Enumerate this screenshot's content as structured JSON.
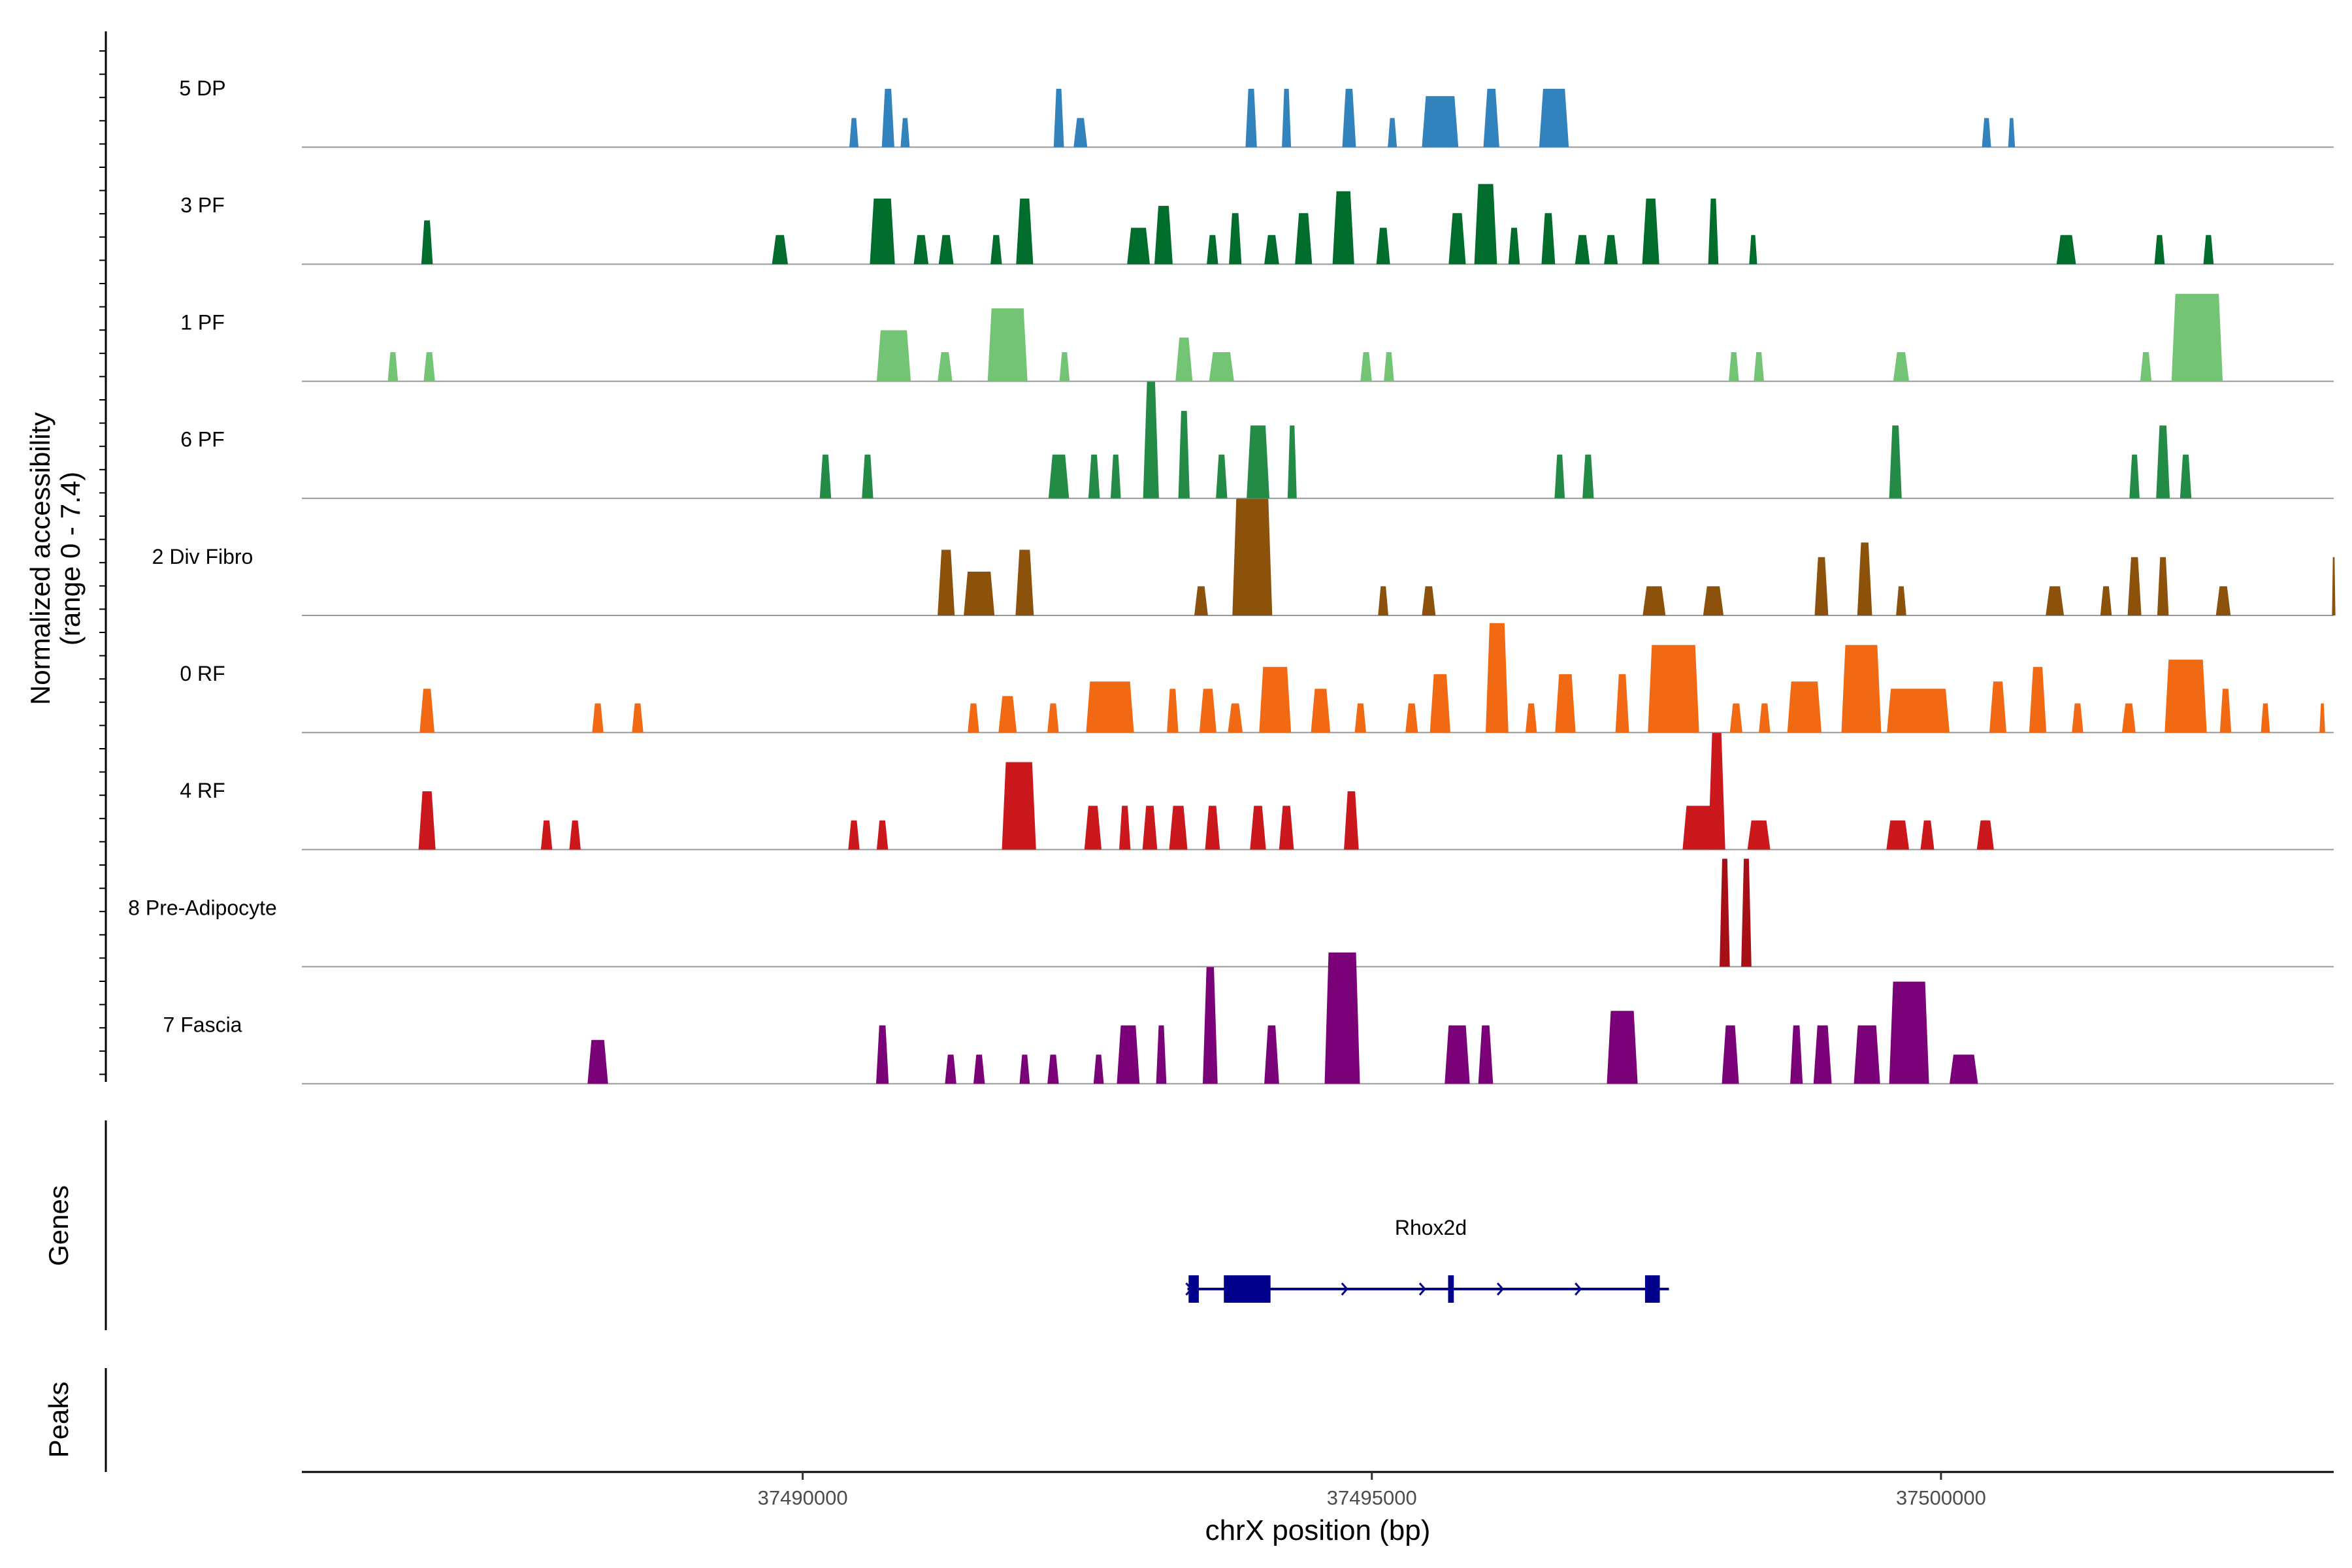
{
  "chart_data": {
    "type": "area",
    "title": "",
    "chromosome": "chrX",
    "xlabel": "chrX position (bp)",
    "ylabel": "Normalized accessibility",
    "ylabel_range": "(range 0 - 7.4)",
    "yrange": [
      0,
      7.4
    ],
    "xlim": [
      37485600,
      37503450
    ],
    "x_ticks": [
      37490000,
      37495000,
      37500000
    ],
    "x_tick_labels": [
      "37490000",
      "37495000",
      "37500000"
    ],
    "panels": {
      "genes_title": "Genes",
      "peaks_title": "Peaks"
    },
    "tracks": [
      {
        "name": "5 DP",
        "color": "#3182BD",
        "peaks": [
          [
            37490450,
            80,
            2.0
          ],
          [
            37490750,
            110,
            4.0
          ],
          [
            37490900,
            80,
            2.0
          ],
          [
            37492250,
            90,
            4.0
          ],
          [
            37492440,
            120,
            2.0
          ],
          [
            37493940,
            100,
            4.0
          ],
          [
            37494250,
            80,
            4.0
          ],
          [
            37494800,
            120,
            4.0
          ],
          [
            37495180,
            80,
            2.0
          ],
          [
            37495600,
            320,
            3.5
          ],
          [
            37496050,
            140,
            4.0
          ],
          [
            37496600,
            260,
            4.0
          ],
          [
            37500400,
            80,
            2.0
          ],
          [
            37500620,
            60,
            2.0
          ]
        ]
      },
      {
        "name": "3 PF",
        "color": "#006D2C",
        "peaks": [
          [
            37486700,
            100,
            3.0
          ],
          [
            37489800,
            140,
            2.0
          ],
          [
            37490700,
            220,
            4.5
          ],
          [
            37491040,
            130,
            2.0
          ],
          [
            37491260,
            130,
            2.0
          ],
          [
            37491700,
            100,
            2.0
          ],
          [
            37491950,
            150,
            4.5
          ],
          [
            37492950,
            200,
            2.5
          ],
          [
            37493170,
            160,
            4.0
          ],
          [
            37493600,
            100,
            2.0
          ],
          [
            37493800,
            110,
            3.5
          ],
          [
            37494120,
            130,
            2.0
          ],
          [
            37494400,
            150,
            3.5
          ],
          [
            37494750,
            190,
            5.0
          ],
          [
            37495100,
            120,
            2.5
          ],
          [
            37495750,
            150,
            3.5
          ],
          [
            37496000,
            200,
            5.5
          ],
          [
            37496250,
            100,
            2.5
          ],
          [
            37496550,
            120,
            3.5
          ],
          [
            37496850,
            130,
            2.0
          ],
          [
            37497100,
            120,
            2.0
          ],
          [
            37497450,
            150,
            4.5
          ],
          [
            37498000,
            90,
            4.5
          ],
          [
            37498350,
            70,
            2.0
          ],
          [
            37501100,
            170,
            2.0
          ],
          [
            37501920,
            90,
            2.0
          ],
          [
            37502350,
            90,
            2.0
          ]
        ]
      },
      {
        "name": "1 PF",
        "color": "#74C476",
        "peaks": [
          [
            37486400,
            90,
            2.0
          ],
          [
            37486720,
            100,
            2.0
          ],
          [
            37490800,
            300,
            3.5
          ],
          [
            37491250,
            130,
            2.0
          ],
          [
            37491800,
            350,
            5.0
          ],
          [
            37492300,
            90,
            2.0
          ],
          [
            37493350,
            150,
            3.0
          ],
          [
            37493680,
            220,
            2.0
          ],
          [
            37494950,
            100,
            2.0
          ],
          [
            37495150,
            90,
            2.0
          ],
          [
            37498180,
            90,
            2.0
          ],
          [
            37498400,
            90,
            2.0
          ],
          [
            37499650,
            140,
            2.0
          ],
          [
            37501800,
            100,
            2.0
          ],
          [
            37502250,
            450,
            6.0
          ]
        ]
      },
      {
        "name": "6 PF",
        "color": "#238B45",
        "peaks": [
          [
            37490200,
            100,
            3.0
          ],
          [
            37490570,
            100,
            3.0
          ],
          [
            37492250,
            180,
            3.0
          ],
          [
            37492560,
            100,
            3.0
          ],
          [
            37492750,
            90,
            3.0
          ],
          [
            37493060,
            140,
            8.0
          ],
          [
            37493350,
            100,
            6.0
          ],
          [
            37493680,
            100,
            3.0
          ],
          [
            37494000,
            200,
            5.0
          ],
          [
            37494300,
            80,
            5.0
          ],
          [
            37496650,
            90,
            3.0
          ],
          [
            37496900,
            100,
            3.0
          ],
          [
            37499600,
            110,
            5.0
          ],
          [
            37501700,
            90,
            3.0
          ],
          [
            37501950,
            120,
            5.0
          ],
          [
            37502150,
            100,
            3.0
          ]
        ]
      },
      {
        "name": "2 Div Fibro",
        "color": "#8C510A",
        "peaks": [
          [
            37491260,
            150,
            4.5
          ],
          [
            37491550,
            270,
            3.0
          ],
          [
            37491950,
            160,
            4.5
          ],
          [
            37493500,
            120,
            2.0
          ],
          [
            37493950,
            350,
            8.0
          ],
          [
            37495100,
            90,
            2.0
          ],
          [
            37495500,
            120,
            2.0
          ],
          [
            37497480,
            200,
            2.0
          ],
          [
            37498000,
            180,
            2.0
          ],
          [
            37498950,
            120,
            4.0
          ],
          [
            37499330,
            130,
            5.0
          ],
          [
            37499650,
            90,
            2.0
          ],
          [
            37501000,
            160,
            2.0
          ],
          [
            37501450,
            100,
            2.0
          ],
          [
            37501700,
            120,
            4.0
          ],
          [
            37501950,
            100,
            4.0
          ],
          [
            37502480,
            130,
            2.0
          ],
          [
            37503450,
            30,
            4.0
          ]
        ]
      },
      {
        "name": "0 RF",
        "color": "#F16913",
        "peaks": [
          [
            37486700,
            130,
            3.0
          ],
          [
            37488200,
            100,
            2.0
          ],
          [
            37488550,
            100,
            2.0
          ],
          [
            37491500,
            100,
            2.0
          ],
          [
            37491800,
            160,
            2.5
          ],
          [
            37492200,
            100,
            2.0
          ],
          [
            37492700,
            420,
            3.5
          ],
          [
            37493250,
            100,
            3.0
          ],
          [
            37493560,
            150,
            3.0
          ],
          [
            37493800,
            130,
            2.0
          ],
          [
            37494150,
            280,
            4.5
          ],
          [
            37494550,
            170,
            3.0
          ],
          [
            37494900,
            100,
            2.0
          ],
          [
            37495350,
            110,
            2.0
          ],
          [
            37495600,
            180,
            4.0
          ],
          [
            37496100,
            200,
            7.5
          ],
          [
            37496400,
            100,
            2.0
          ],
          [
            37496700,
            180,
            4.0
          ],
          [
            37497200,
            120,
            4.0
          ],
          [
            37497650,
            450,
            6.0
          ],
          [
            37498200,
            110,
            2.0
          ],
          [
            37498450,
            100,
            2.0
          ],
          [
            37498800,
            300,
            3.5
          ],
          [
            37499300,
            350,
            6.0
          ],
          [
            37499800,
            550,
            3.0
          ],
          [
            37500500,
            150,
            3.5
          ],
          [
            37500850,
            150,
            4.5
          ],
          [
            37501200,
            100,
            2.0
          ],
          [
            37501650,
            120,
            2.0
          ],
          [
            37502150,
            370,
            5.0
          ],
          [
            37502500,
            100,
            3.0
          ],
          [
            37502850,
            80,
            2.0
          ],
          [
            37503350,
            50,
            2.0
          ]
        ]
      },
      {
        "name": "4 RF",
        "color": "#CB181D",
        "peaks": [
          [
            37486700,
            150,
            4.0
          ],
          [
            37487750,
            100,
            2.0
          ],
          [
            37488000,
            100,
            2.0
          ],
          [
            37490450,
            100,
            2.0
          ],
          [
            37490700,
            100,
            2.0
          ],
          [
            37491900,
            300,
            6.0
          ],
          [
            37492550,
            150,
            3.0
          ],
          [
            37492830,
            100,
            3.0
          ],
          [
            37493050,
            130,
            3.0
          ],
          [
            37493300,
            160,
            3.0
          ],
          [
            37493600,
            130,
            3.0
          ],
          [
            37494000,
            140,
            3.0
          ],
          [
            37494250,
            130,
            3.0
          ],
          [
            37494820,
            130,
            4.0
          ],
          [
            37497880,
            300,
            3.0
          ],
          [
            37498030,
            150,
            8.0
          ],
          [
            37498400,
            200,
            2.0
          ],
          [
            37499620,
            200,
            2.0
          ],
          [
            37499880,
            120,
            2.0
          ],
          [
            37500380,
            130,
            2.0
          ],
          [
            37500400,
            130,
            2.0
          ]
        ]
      },
      {
        "name": "8 Pre-Adipocyte",
        "color": "#A50F15",
        "peaks": [
          [
            37498100,
            90,
            7.4
          ],
          [
            37498290,
            90,
            7.4
          ]
        ]
      },
      {
        "name": "7 Fascia",
        "color": "#7A0177",
        "peaks": [
          [
            37488200,
            180,
            3.0
          ],
          [
            37490700,
            110,
            4.0
          ],
          [
            37491300,
            100,
            2.0
          ],
          [
            37491550,
            100,
            2.0
          ],
          [
            37491950,
            90,
            2.0
          ],
          [
            37492200,
            100,
            2.0
          ],
          [
            37492600,
            90,
            2.0
          ],
          [
            37492860,
            200,
            4.0
          ],
          [
            37493150,
            90,
            4.0
          ],
          [
            37493580,
            130,
            8.0
          ],
          [
            37494120,
            130,
            4.0
          ],
          [
            37494740,
            310,
            9.0
          ],
          [
            37495750,
            220,
            4.0
          ],
          [
            37496000,
            130,
            4.0
          ],
          [
            37497200,
            270,
            5.0
          ],
          [
            37498150,
            150,
            4.0
          ],
          [
            37498730,
            110,
            4.0
          ],
          [
            37498960,
            160,
            4.0
          ],
          [
            37499350,
            230,
            4.0
          ],
          [
            37499720,
            350,
            7.0
          ],
          [
            37500200,
            250,
            2.0
          ]
        ]
      }
    ],
    "gene": {
      "name": "Rhox2d",
      "strand": "+",
      "start": 37493380,
      "end": 37497610,
      "exons": [
        [
          37493390,
          37493480
        ],
        [
          37493700,
          37494110
        ],
        [
          37495670,
          37495720
        ],
        [
          37497400,
          37497530
        ]
      ],
      "color": "#00008B"
    }
  }
}
